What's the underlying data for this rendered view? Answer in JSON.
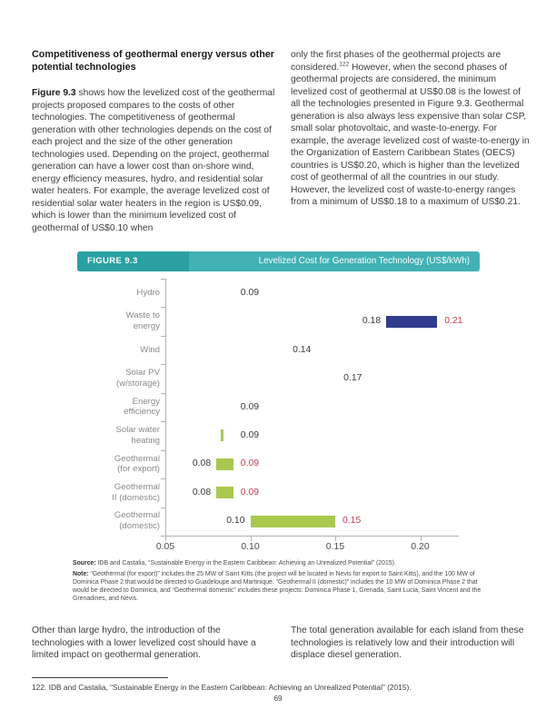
{
  "heading": "Competitiveness of geothermal energy versus other potential technologies",
  "columns": {
    "left": {
      "lead": "Figure 9.3",
      "text": " shows how the levelized cost of the geothermal projects proposed compares to the costs of other technologies. The competitiveness of geothermal generation with other technologies depends on the cost of each project and the size of the other generation technologies used. Depending on the project, geothermal generation can have a lower cost than on-shore wind, energy efficiency measures, hydro, and residential solar water heaters. For example, the average levelized cost of residential solar water heaters in the region is US$0.09, which is lower than the minimum levelized cost of geothermal of US$0.10 when"
    },
    "right": {
      "before_sup": "only the first phases of the geothermal projects are considered.",
      "sup": "122",
      "after_sup": " However, when the second phases of geothermal projects are considered, the minimum levelized cost of geothermal at US$0.08 is the lowest of all the technologies presented in Figure 9.3. Geothermal generation is also always less expensive than solar CSP, small solar photovoltaic, and waste-to-energy. For example, the average levelized cost of waste-to-energy in the Organization of Eastern Caribbean States (OECS) countries is US$0.20, which is higher than the levelized cost of geothermal of all the countries in our study. However, the levelized cost of waste-to-energy ranges from a minimum of US$0.18 to a maximum of US$0.21."
    }
  },
  "figure": {
    "label": "FIGURE 9.3",
    "title": "Levelized Cost for Generation Technology (US$/kWh)"
  },
  "chart_data": {
    "type": "bar",
    "orientation": "horizontal",
    "title": "Levelized Cost for Generation Technology (US$/kWh)",
    "xlabel": "US$/kWh",
    "xlim": [
      0.05,
      0.222
    ],
    "x_ticks": [
      0.05,
      0.1,
      0.15,
      0.2
    ],
    "grid": false,
    "legend": false,
    "categories": [
      "Hydro",
      "Waste to energy",
      "Wind",
      "Solar PV (w/storage)",
      "Energy efficiency",
      "Solar water heating",
      "Geothermal (for export)",
      "Geothermal II (domestic)",
      "Geothermal (domestic)"
    ],
    "rows": [
      {
        "category": "Hydro",
        "category_lines": [
          "Hydro"
        ],
        "min": 0.09,
        "max": 0.09,
        "bar": "none",
        "label_pos": "after"
      },
      {
        "category": "Waste to energy",
        "category_lines": [
          "Waste to",
          "energy"
        ],
        "min": 0.18,
        "max": 0.21,
        "bar": "navy"
      },
      {
        "category": "Wind",
        "category_lines": [
          "Wind"
        ],
        "min": 0.14,
        "max": 0.14,
        "bar": "none",
        "label_pos": "before"
      },
      {
        "category": "Solar PV (w/storage)",
        "category_lines": [
          "Solar PV",
          "(w/storage)"
        ],
        "min": 0.17,
        "max": 0.17,
        "bar": "none",
        "label_pos": "before"
      },
      {
        "category": "Energy efficiency",
        "category_lines": [
          "Energy",
          "efficiency"
        ],
        "min": 0.09,
        "max": 0.09,
        "bar": "none",
        "label_pos": "after"
      },
      {
        "category": "Solar water heating",
        "category_lines": [
          "Solar water",
          "heating"
        ],
        "min": 0.09,
        "max": 0.09,
        "bar": "tick",
        "label_pos": "after"
      },
      {
        "category": "Geothermal (for export)",
        "category_lines": [
          "Geothermal",
          "(for export)"
        ],
        "min": 0.08,
        "max": 0.09,
        "bar": "green"
      },
      {
        "category": "Geothermal II (domestic)",
        "category_lines": [
          "Geothermal",
          "II (domestic)"
        ],
        "min": 0.08,
        "max": 0.09,
        "bar": "green"
      },
      {
        "category": "Geothermal (domestic)",
        "category_lines": [
          "Geothermal",
          "(domestic)"
        ],
        "min": 0.1,
        "max": 0.15,
        "bar": "green"
      }
    ],
    "colors": {
      "bar_green": "#a9c84f",
      "bar_navy": "#303c8c",
      "label_min": "#3a3a3a",
      "label_max": "#c23b4f",
      "axis": "#b3b3b3",
      "category_text": "#8a8a8a",
      "header_teal_dark": "#2aa0a2",
      "header_teal_light": "#41b1b3"
    }
  },
  "source_note": {
    "source_label": "Source:",
    "source_text": " IDB and Castalia, “Sustainable Energy in the Eastern Caribbean: Achieving an Unrealized Potential” (2015).",
    "note_label": "Note:",
    "note_text": " “Geothermal (for export)” includes the 25 MW of Saint Kitts (the project will be located in Nevis for export to Saint Kitts), and the 100 MW of Dominica Phase 2 that would be directed to Guadeloupe and Martinique. “Geothermal II (domestic)” includes the 10 MW of Dominica Phase 2 that would be directed to Dominica, and “Geothermal domestic” includes these projects: Dominica Phase 1, Grenada, Saint Lucia, Saint Vincent and the Grenadines, and Nevis."
  },
  "bottom": {
    "left": "Other than large hydro, the introduction of the technologies with a lower levelized cost should have a limited impact on geothermal generation.",
    "right": "The total generation available for each island from these technologies is relatively low and their introduction will displace diesel generation."
  },
  "footnote": "122. IDB and Castalia, “Sustainable Energy in the Eastern Caribbean: Achieving an Unrealized Potential” (2015).",
  "page": {
    "number": "69"
  }
}
